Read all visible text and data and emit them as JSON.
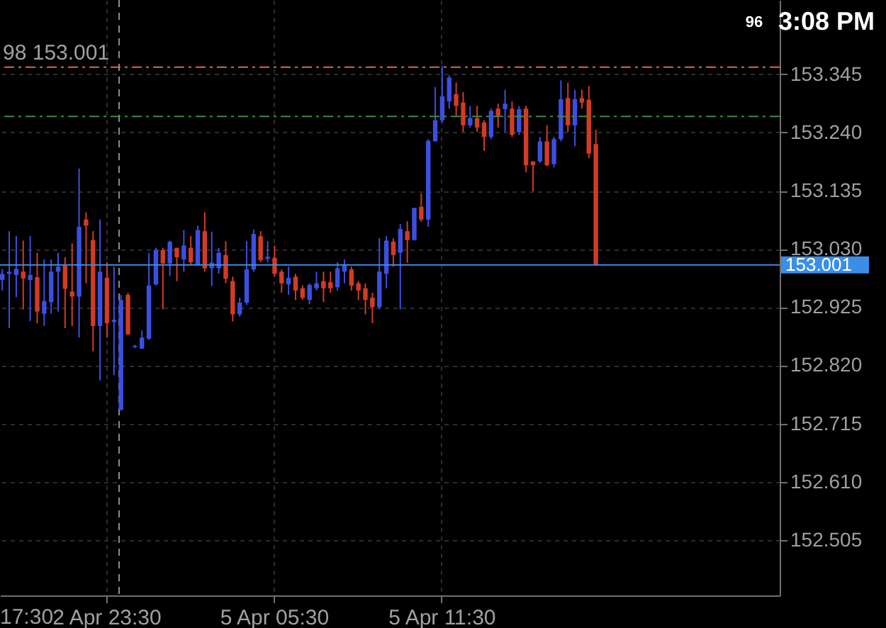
{
  "chart_data": {
    "type": "candlestick",
    "categories": [
      null,
      null,
      null,
      null,
      null,
      null,
      null,
      null,
      null,
      null,
      null,
      null,
      null,
      null,
      null,
      "2 Apr 23:30",
      null,
      null,
      null,
      null,
      null,
      null,
      null,
      null,
      null,
      null,
      null,
      null,
      null,
      null,
      null,
      null,
      null,
      null,
      null,
      null,
      null,
      null,
      null,
      "5 Apr 05:30",
      null,
      null,
      null,
      null,
      null,
      null,
      null,
      null,
      null,
      null,
      null,
      null,
      null,
      null,
      null,
      null,
      null,
      null,
      null,
      null,
      null,
      null,
      null,
      "5 Apr 11:30",
      null,
      null,
      null,
      null,
      null,
      null,
      null,
      null,
      null,
      null,
      null,
      null,
      null,
      null,
      null,
      null,
      null,
      null,
      null,
      null,
      null,
      null,
      null,
      null,
      null,
      null,
      null,
      null,
      null,
      null,
      null,
      null,
      null,
      null,
      null,
      null,
      null,
      null,
      null,
      null,
      null,
      null,
      null,
      null,
      null,
      null,
      null,
      null
    ],
    "ohlc": [
      [
        152.974,
        152.994,
        152.955,
        152.985
      ],
      [
        152.985,
        153.062,
        152.887,
        152.989
      ],
      [
        152.983,
        153.053,
        152.943,
        152.994
      ],
      [
        152.989,
        153.045,
        152.921,
        152.977
      ],
      [
        152.974,
        153.053,
        152.9,
        152.983
      ],
      [
        152.979,
        153.023,
        152.896,
        152.917
      ],
      [
        152.913,
        153.011,
        152.891,
        152.936
      ],
      [
        152.934,
        153.011,
        152.913,
        152.989
      ],
      [
        152.989,
        153.023,
        152.917,
        152.998
      ],
      [
        153.0,
        153.015,
        152.887,
        152.958
      ],
      [
        152.953,
        153.04,
        152.891,
        152.944
      ],
      [
        152.944,
        153.175,
        152.87,
        153.07
      ],
      [
        153.083,
        153.096,
        152.968,
        153.072
      ],
      [
        153.046,
        153.062,
        152.845,
        152.891
      ],
      [
        152.891,
        153.083,
        152.793,
        152.989
      ],
      [
        152.978,
        153.006,
        152.87,
        152.896
      ],
      [
        152.898,
        152.998,
        152.802,
        152.902
      ],
      [
        152.74,
        152.947,
        152.738,
        152.938
      ],
      [
        152.947,
        152.951,
        152.874,
        152.876
      ],
      [
        152.853,
        152.857,
        152.851,
        152.855
      ],
      [
        152.85,
        152.883,
        152.85,
        152.87
      ],
      [
        152.868,
        153.023,
        152.866,
        152.964
      ],
      [
        152.966,
        153.032,
        152.964,
        153.028
      ],
      [
        153.028,
        153.032,
        152.921,
        153.004
      ],
      [
        153.004,
        153.045,
        152.981,
        153.043
      ],
      [
        153.032,
        153.032,
        152.972,
        153.015
      ],
      [
        153.011,
        153.064,
        152.989,
        153.036
      ],
      [
        153.032,
        153.053,
        153.002,
        153.006
      ],
      [
        153.002,
        153.072,
        153.002,
        153.064
      ],
      [
        153.062,
        153.096,
        152.989,
        152.995
      ],
      [
        152.995,
        153.061,
        152.963,
        153.005
      ],
      [
        152.995,
        153.032,
        152.985,
        153.023
      ],
      [
        153.019,
        153.044,
        152.968,
        152.976
      ],
      [
        152.972,
        152.98,
        152.899,
        152.912
      ],
      [
        152.912,
        152.942,
        152.908,
        152.933
      ],
      [
        152.933,
        153.044,
        152.929,
        152.993
      ],
      [
        152.993,
        153.065,
        152.989,
        153.057
      ],
      [
        153.053,
        153.062,
        153.006,
        153.01
      ],
      [
        153.012,
        153.044,
        153.006,
        153.016
      ],
      [
        153.014,
        153.036,
        152.98,
        152.985
      ],
      [
        152.989,
        152.993,
        152.951,
        152.968
      ],
      [
        152.966,
        152.998,
        152.947,
        152.978
      ],
      [
        152.98,
        152.985,
        152.938,
        152.955
      ],
      [
        152.959,
        152.964,
        152.938,
        152.942
      ],
      [
        152.938,
        152.968,
        152.93,
        152.965
      ],
      [
        152.959,
        152.989,
        152.955,
        152.968
      ],
      [
        152.972,
        152.989,
        152.934,
        152.959
      ],
      [
        152.97,
        152.989,
        152.951,
        152.959
      ],
      [
        152.961,
        153.006,
        152.955,
        152.995
      ],
      [
        152.989,
        153.011,
        152.968,
        153.002
      ],
      [
        152.993,
        152.998,
        152.955,
        152.964
      ],
      [
        152.968,
        152.972,
        152.938,
        152.955
      ],
      [
        152.959,
        152.968,
        152.912,
        152.938
      ],
      [
        152.942,
        152.951,
        152.896,
        152.925
      ],
      [
        152.925,
        153.049,
        152.921,
        152.989
      ],
      [
        152.985,
        153.053,
        152.959,
        153.045
      ],
      [
        153.043,
        153.049,
        152.998,
        153.019
      ],
      [
        153.023,
        153.075,
        152.921,
        153.066
      ],
      [
        153.062,
        153.08,
        153.005,
        153.046
      ],
      [
        153.046,
        153.104,
        153.045,
        153.104
      ],
      [
        153.106,
        153.13,
        153.079,
        153.083
      ],
      [
        153.083,
        153.228,
        153.07,
        153.225
      ],
      [
        153.224,
        153.322,
        153.224,
        153.262
      ],
      [
        153.262,
        153.36,
        153.258,
        153.305
      ],
      [
        153.296,
        153.343,
        153.283,
        153.339
      ],
      [
        153.309,
        153.33,
        153.27,
        153.288
      ],
      [
        153.294,
        153.313,
        153.241,
        153.253
      ],
      [
        153.253,
        153.288,
        153.249,
        153.266
      ],
      [
        153.266,
        153.288,
        153.241,
        153.249
      ],
      [
        153.258,
        153.262,
        153.207,
        153.232
      ],
      [
        153.232,
        153.283,
        153.228,
        153.279
      ],
      [
        153.283,
        153.292,
        153.249,
        153.27
      ],
      [
        153.282,
        153.317,
        153.241,
        153.292
      ],
      [
        153.283,
        153.296,
        153.232,
        153.236
      ],
      [
        153.241,
        153.288,
        153.236,
        153.282
      ],
      [
        153.283,
        153.288,
        153.168,
        153.181
      ],
      [
        153.188,
        153.188,
        153.134,
        153.181
      ],
      [
        153.188,
        153.232,
        153.185,
        153.224
      ],
      [
        153.224,
        153.253,
        153.179,
        153.181
      ],
      [
        153.183,
        153.232,
        153.177,
        153.228
      ],
      [
        153.228,
        153.334,
        153.224,
        153.3
      ],
      [
        153.302,
        153.33,
        153.241,
        153.253
      ],
      [
        153.253,
        153.317,
        153.215,
        153.3
      ],
      [
        153.302,
        153.317,
        153.283,
        153.294
      ],
      [
        153.299,
        153.324,
        153.194,
        153.202
      ],
      [
        153.219,
        153.245,
        153.0,
        153.001
      ],
      null,
      null,
      null,
      null,
      null,
      null,
      null,
      null,
      null,
      null,
      null,
      null,
      null,
      null,
      null,
      null,
      null,
      null,
      null,
      null,
      null,
      null,
      null,
      null,
      null,
      null
    ],
    "colors": [
      "#3c4fe3",
      "#3c4fe3",
      "#3c4fe3",
      "#d23b24",
      "#3c4fe3",
      "#d23b24",
      "#3c4fe3",
      "#3c4fe3",
      "#3c4fe3",
      "#d23b24",
      "#d23b24",
      "#3c4fe3",
      "#d23b24",
      "#d23b24",
      "#3c4fe3",
      "#d23b24",
      "#3c4fe3",
      "#3c4fe3",
      "#d23b24",
      "#3c4fe3",
      "#3c4fe3",
      "#3c4fe3",
      "#3c4fe3",
      "#d23b24",
      "#3c4fe3",
      "#d23b24",
      "#3c4fe3",
      "#d23b24",
      "#3c4fe3",
      "#d23b24",
      "#3c4fe3",
      "#3c4fe3",
      "#d23b24",
      "#d23b24",
      "#3c4fe3",
      "#3c4fe3",
      "#3c4fe3",
      "#d23b24",
      "#3c4fe3",
      "#d23b24",
      "#d23b24",
      "#3c4fe3",
      "#d23b24",
      "#d23b24",
      "#3c4fe3",
      "#3c4fe3",
      "#d23b24",
      "#d23b24",
      "#3c4fe3",
      "#3c4fe3",
      "#d23b24",
      "#d23b24",
      "#d23b24",
      "#d23b24",
      "#3c4fe3",
      "#3c4fe3",
      "#d23b24",
      "#3c4fe3",
      "#d23b24",
      "#3c4fe3",
      "#d23b24",
      "#3c4fe3",
      "#3c4fe3",
      "#3c4fe3",
      "#3c4fe3",
      "#d23b24",
      "#d23b24",
      "#3c4fe3",
      "#d23b24",
      "#d23b24",
      "#3c4fe3",
      "#d23b24",
      "#3c4fe3",
      "#d23b24",
      "#3c4fe3",
      "#d23b24",
      "#d23b24",
      "#3c4fe3",
      "#d23b24",
      "#3c4fe3",
      "#3c4fe3",
      "#d23b24",
      "#3c4fe3",
      "#d23b24",
      "#d23b24",
      "#d23b24",
      null,
      null,
      null,
      null,
      null,
      null,
      null,
      null,
      null,
      null,
      null,
      null,
      null,
      null,
      null,
      null,
      null,
      null,
      null,
      null,
      null,
      null,
      null,
      null,
      null,
      null
    ],
    "ylim": [
      152.405,
      153.479
    ],
    "yticks": [
      {
        "value": 152.505,
        "label": "152.505"
      },
      {
        "value": 152.61,
        "label": "152.610"
      },
      {
        "value": 152.715,
        "label": "152.715"
      },
      {
        "value": 152.82,
        "label": "152.820"
      },
      {
        "value": 152.925,
        "label": "152.925"
      },
      {
        "value": 153.03,
        "label": "153.030"
      },
      {
        "value": 153.135,
        "label": "153.135"
      },
      {
        "value": 153.24,
        "label": "153.240"
      },
      {
        "value": 153.345,
        "label": "153.345"
      }
    ],
    "grid": true,
    "ref_lines": [
      {
        "axis": "y",
        "value": 153.358,
        "color": "#d9694a",
        "line_style": "dashed"
      },
      {
        "axis": "y",
        "value": 153.269,
        "color": "#3d8a45",
        "line_style": "dashed"
      },
      {
        "axis": "y",
        "value": 153.001,
        "label": "153.001",
        "color": "#3b8ee6",
        "line_style": "solid"
      }
    ],
    "annotations": [
      "98 153.001",
      "17:30",
      "3:08 PM",
      "96"
    ]
  }
}
